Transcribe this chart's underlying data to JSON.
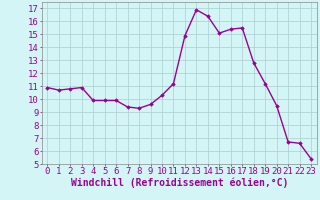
{
  "x": [
    0,
    1,
    2,
    3,
    4,
    5,
    6,
    7,
    8,
    9,
    10,
    11,
    12,
    13,
    14,
    15,
    16,
    17,
    18,
    19,
    20,
    21,
    22,
    23
  ],
  "y": [
    10.9,
    10.7,
    10.8,
    10.9,
    9.9,
    9.9,
    9.9,
    9.4,
    9.3,
    9.6,
    10.3,
    11.2,
    14.9,
    16.9,
    16.4,
    15.1,
    15.4,
    15.5,
    12.8,
    11.2,
    9.5,
    6.7,
    6.6,
    5.4
  ],
  "line_color": "#990099",
  "marker": "D",
  "marker_size": 1.8,
  "bg_color": "#d4f5f5",
  "grid_color": "#aacfcf",
  "xlabel": "Windchill (Refroidissement éolien,°C)",
  "xlabel_color": "#990099",
  "tick_color": "#990099",
  "xlim": [
    -0.5,
    23.5
  ],
  "ylim": [
    5,
    17.5
  ],
  "yticks": [
    5,
    6,
    7,
    8,
    9,
    10,
    11,
    12,
    13,
    14,
    15,
    16,
    17
  ],
  "xticks": [
    0,
    1,
    2,
    3,
    4,
    5,
    6,
    7,
    8,
    9,
    10,
    11,
    12,
    13,
    14,
    15,
    16,
    17,
    18,
    19,
    20,
    21,
    22,
    23
  ],
  "line_width": 1.0,
  "font_size": 6.5,
  "xlabel_font_size": 7.0
}
